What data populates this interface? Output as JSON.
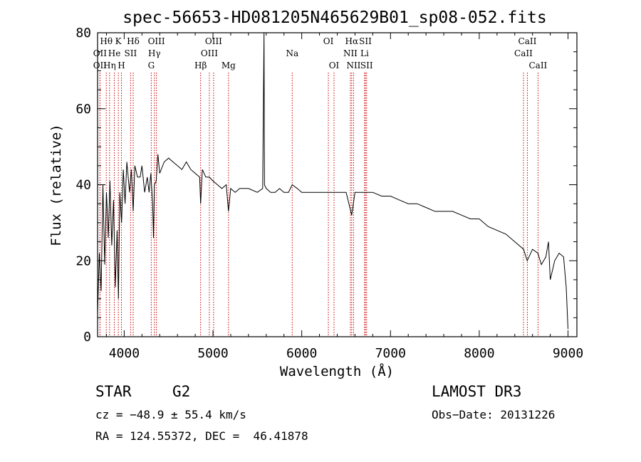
{
  "chart_data": {
    "type": "line",
    "title": "spec-56653-HD081205N465629B01_sp08-052.fits",
    "xlabel": "Wavelength (Å)",
    "ylabel": "Flux (relative)",
    "xlim": [
      3700,
      9100
    ],
    "ylim": [
      0,
      80
    ],
    "x_ticks": [
      4000,
      5000,
      6000,
      7000,
      8000,
      9000
    ],
    "y_ticks": [
      0,
      20,
      40,
      60,
      80
    ],
    "grid": false,
    "line_color": "#000000",
    "marker_color": "#cc0000",
    "series": [
      {
        "x": [
          3700,
          3720,
          3740,
          3760,
          3780,
          3800,
          3820,
          3840,
          3860,
          3880,
          3900,
          3920,
          3935,
          3950,
          3970,
          3990,
          4010,
          4030,
          4060,
          4080,
          4101,
          4120,
          4150,
          4180,
          4200,
          4230,
          4260,
          4280,
          4300,
          4320,
          4330,
          4340,
          4360,
          4380,
          4400,
          4450,
          4500,
          4550,
          4600,
          4650,
          4700,
          4750,
          4800,
          4850,
          4861,
          4880,
          4920,
          4960,
          5000,
          5050,
          5100,
          5150,
          5175,
          5200,
          5250,
          5300,
          5400,
          5500,
          5560,
          5575,
          5580,
          5600,
          5650,
          5700,
          5750,
          5800,
          5850,
          5893,
          5950,
          6000,
          6100,
          6200,
          6300,
          6400,
          6500,
          6563,
          6600,
          6700,
          6800,
          6900,
          7000,
          7100,
          7200,
          7300,
          7400,
          7500,
          7600,
          7700,
          7800,
          7900,
          8000,
          8100,
          8200,
          8300,
          8400,
          8500,
          8540,
          8600,
          8660,
          8700,
          8750,
          8780,
          8800,
          8850,
          8900,
          8950,
          8980,
          9000
        ],
        "y": [
          6,
          22,
          12,
          40,
          19,
          38,
          26,
          41,
          24,
          36,
          13,
          28,
          10,
          38,
          30,
          44,
          35,
          46,
          38,
          44,
          33,
          45,
          42,
          42,
          45,
          38,
          42,
          38,
          43,
          35,
          26,
          40,
          41,
          48,
          43,
          46,
          47,
          46,
          45,
          44,
          46,
          44,
          43,
          42,
          35,
          44,
          42,
          42,
          41,
          40,
          39,
          40,
          33,
          39,
          38,
          39,
          39,
          38,
          39,
          82,
          40,
          39,
          38,
          38,
          39,
          38,
          38,
          40,
          39,
          38,
          38,
          38,
          38,
          38,
          38,
          32,
          38,
          38,
          38,
          37,
          37,
          36,
          35,
          35,
          34,
          33,
          33,
          33,
          32,
          31,
          31,
          29,
          28,
          27,
          25,
          23,
          20,
          23,
          22,
          19,
          21,
          25,
          15,
          20,
          22,
          21,
          13,
          2
        ]
      }
    ],
    "line_markers": [
      {
        "label": "Hθ",
        "x": 3798,
        "row": 1
      },
      {
        "label": "OII",
        "x": 3727,
        "row": 2
      },
      {
        "label": "OII",
        "x": 3727,
        "row": 3
      },
      {
        "label": "He",
        "x": 3889,
        "row": 2
      },
      {
        "label": "Hη",
        "x": 3835,
        "row": 3
      },
      {
        "label": "K",
        "x": 3934,
        "row": 1
      },
      {
        "label": "H",
        "x": 3969,
        "row": 3
      },
      {
        "label": "Hδ",
        "x": 4101,
        "row": 1
      },
      {
        "label": "SII",
        "x": 4072,
        "row": 2
      },
      {
        "label": "OIII",
        "x": 4363,
        "row": 1
      },
      {
        "label": "Hγ",
        "x": 4340,
        "row": 2
      },
      {
        "label": "G",
        "x": 4305,
        "row": 3
      },
      {
        "label": "Hβ",
        "x": 4861,
        "row": 3
      },
      {
        "label": "OIII",
        "x": 5007,
        "row": 1
      },
      {
        "label": "OIII",
        "x": 4959,
        "row": 2
      },
      {
        "label": "Mg",
        "x": 5175,
        "row": 3
      },
      {
        "label": "Na",
        "x": 5893,
        "row": 2
      },
      {
        "label": "OI",
        "x": 6300,
        "row": 1
      },
      {
        "label": "OI",
        "x": 6364,
        "row": 3
      },
      {
        "label": "Hα",
        "x": 6563,
        "row": 1
      },
      {
        "label": "NII",
        "x": 6548,
        "row": 2
      },
      {
        "label": "NII",
        "x": 6584,
        "row": 3
      },
      {
        "label": "SII",
        "x": 6717,
        "row": 1
      },
      {
        "label": "Li",
        "x": 6708,
        "row": 2
      },
      {
        "label": "SII",
        "x": 6731,
        "row": 3
      },
      {
        "label": "CaII",
        "x": 8542,
        "row": 1
      },
      {
        "label": "CaII",
        "x": 8498,
        "row": 2
      },
      {
        "label": "CaII",
        "x": 8662,
        "row": 3
      }
    ]
  },
  "footer": {
    "object_class": "STAR",
    "subclass": "G2",
    "survey": "LAMOST DR3",
    "cz": "cz = −48.9 ± 55.4 km/s",
    "obs_date": "Obs−Date: 20131226",
    "coords": "RA = 124.55372, DEC =  46.41878"
  }
}
